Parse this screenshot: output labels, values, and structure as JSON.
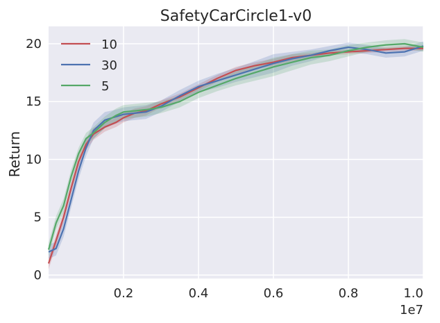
{
  "chart_data": {
    "type": "line",
    "title": "SafetyCarCircle1-v0",
    "xlabel": "",
    "ylabel": "Return",
    "x_scale_label": "1e7",
    "xlim": [
      0.0,
      1.0
    ],
    "ylim": [
      -0.3,
      21.5
    ],
    "xticks": [
      0.2,
      0.4,
      0.6,
      0.8,
      1.0
    ],
    "xtick_labels": [
      "0.2",
      "0.4",
      "0.6",
      "0.8",
      "1.0"
    ],
    "yticks": [
      0,
      5,
      10,
      15,
      20
    ],
    "ytick_labels": [
      "0",
      "5",
      "10",
      "15",
      "20"
    ],
    "grid": true,
    "legend_position": "top-left",
    "series": [
      {
        "name": "10",
        "color": "#c44e52",
        "x": [
          0.0,
          0.02,
          0.04,
          0.06,
          0.08,
          0.1,
          0.12,
          0.15,
          0.18,
          0.2,
          0.23,
          0.26,
          0.3,
          0.35,
          0.4,
          0.45,
          0.5,
          0.55,
          0.6,
          0.65,
          0.7,
          0.75,
          0.8,
          0.85,
          0.9,
          0.95,
          1.0
        ],
        "y": [
          1.0,
          3.0,
          5.0,
          7.5,
          9.8,
          11.3,
          12.2,
          12.8,
          13.2,
          13.6,
          14.0,
          14.2,
          14.8,
          15.4,
          16.2,
          17.0,
          17.7,
          18.1,
          18.4,
          18.8,
          19.0,
          19.2,
          19.3,
          19.4,
          19.5,
          19.6,
          19.6
        ],
        "band": [
          0.5,
          0.5,
          0.5,
          0.5,
          0.5,
          0.5,
          0.5,
          0.4,
          0.4,
          0.4,
          0.4,
          0.4,
          0.3,
          0.3,
          0.3,
          0.3,
          0.3,
          0.3,
          0.3,
          0.3,
          0.2,
          0.2,
          0.2,
          0.2,
          0.2,
          0.2,
          0.2
        ]
      },
      {
        "name": "30",
        "color": "#4c72b0",
        "x": [
          0.0,
          0.02,
          0.04,
          0.06,
          0.08,
          0.1,
          0.12,
          0.15,
          0.18,
          0.2,
          0.23,
          0.26,
          0.3,
          0.35,
          0.4,
          0.45,
          0.5,
          0.55,
          0.6,
          0.65,
          0.7,
          0.75,
          0.8,
          0.85,
          0.9,
          0.95,
          1.0
        ],
        "y": [
          2.0,
          2.3,
          4.0,
          6.5,
          9.0,
          11.0,
          12.5,
          13.4,
          13.7,
          13.9,
          14.0,
          14.1,
          14.6,
          15.5,
          16.3,
          16.8,
          17.3,
          17.8,
          18.3,
          18.7,
          19.0,
          19.4,
          19.7,
          19.5,
          19.2,
          19.3,
          19.8
        ],
        "band": [
          0.6,
          0.6,
          0.7,
          0.7,
          0.7,
          0.7,
          0.7,
          0.7,
          0.6,
          0.6,
          0.6,
          0.6,
          0.5,
          0.5,
          0.5,
          0.6,
          0.6,
          0.7,
          0.8,
          0.6,
          0.5,
          0.4,
          0.4,
          0.4,
          0.4,
          0.4,
          0.4
        ]
      },
      {
        "name": "5",
        "color": "#55a868",
        "x": [
          0.0,
          0.02,
          0.04,
          0.06,
          0.08,
          0.1,
          0.12,
          0.15,
          0.18,
          0.2,
          0.23,
          0.26,
          0.3,
          0.35,
          0.4,
          0.45,
          0.5,
          0.55,
          0.6,
          0.65,
          0.7,
          0.75,
          0.8,
          0.85,
          0.9,
          0.95,
          1.0
        ],
        "y": [
          2.2,
          4.5,
          6.0,
          8.5,
          10.5,
          11.8,
          12.3,
          13.2,
          13.8,
          14.1,
          14.2,
          14.3,
          14.5,
          15.0,
          15.8,
          16.4,
          17.0,
          17.5,
          18.0,
          18.4,
          18.8,
          19.0,
          19.4,
          19.7,
          19.9,
          20.0,
          19.7
        ],
        "band": [
          0.6,
          0.6,
          0.6,
          0.6,
          0.5,
          0.5,
          0.5,
          0.5,
          0.6,
          0.6,
          0.6,
          0.6,
          0.5,
          0.5,
          0.5,
          0.5,
          0.6,
          0.7,
          0.8,
          0.7,
          0.6,
          0.5,
          0.5,
          0.4,
          0.4,
          0.4,
          0.4
        ]
      }
    ]
  }
}
